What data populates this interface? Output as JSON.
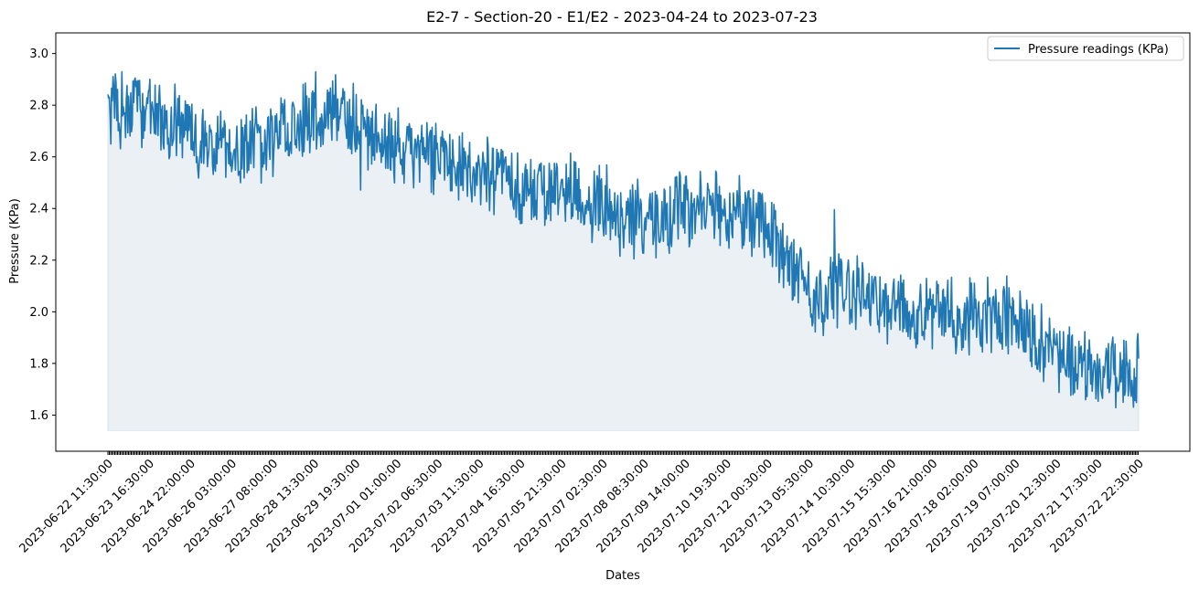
{
  "chart_data": {
    "type": "line",
    "title": "E2-7 - Section-20 - E1/E2 - 2023-04-24 to 2023-07-23",
    "xlabel": "Dates",
    "ylabel": "Pressure (KPa)",
    "x_tick_labels": [
      "2023-06-22 11:30:00",
      "2023-06-23 16:30:00",
      "2023-06-24 22:00:00",
      "2023-06-26 03:00:00",
      "2023-06-27 08:00:00",
      "2023-06-28 13:30:00",
      "2023-06-29 19:30:00",
      "2023-07-01 01:00:00",
      "2023-07-02 06:30:00",
      "2023-07-03 11:30:00",
      "2023-07-04 16:30:00",
      "2023-07-05 21:30:00",
      "2023-07-07 02:30:00",
      "2023-07-08 08:30:00",
      "2023-07-09 14:00:00",
      "2023-07-10 19:30:00",
      "2023-07-12 00:30:00",
      "2023-07-13 05:30:00",
      "2023-07-14 10:30:00",
      "2023-07-15 15:30:00",
      "2023-07-16 21:00:00",
      "2023-07-18 02:00:00",
      "2023-07-19 07:00:00",
      "2023-07-20 12:30:00",
      "2023-07-21 17:30:00",
      "2023-07-22 22:30:00"
    ],
    "y_ticks": [
      1.6,
      1.8,
      2.0,
      2.2,
      2.4,
      2.6,
      2.8,
      3.0
    ],
    "ylim": [
      1.46,
      3.08
    ],
    "fill_baseline": 1.54,
    "legend_position": "top-right",
    "series": [
      {
        "name": "Pressure readings (KPa)",
        "color": "#1f77b4",
        "fill_color": "#dde6ec",
        "x": [
          "2023-06-22 11:30:00",
          "2023-06-23 16:30:00",
          "2023-06-24 22:00:00",
          "2023-06-26 03:00:00",
          "2023-06-27 08:00:00",
          "2023-06-28 13:30:00",
          "2023-06-29 19:30:00",
          "2023-07-01 01:00:00",
          "2023-07-02 06:30:00",
          "2023-07-03 11:30:00",
          "2023-07-04 16:30:00",
          "2023-07-05 21:30:00",
          "2023-07-07 02:30:00",
          "2023-07-08 08:30:00",
          "2023-07-09 14:00:00",
          "2023-07-10 19:30:00",
          "2023-07-12 00:30:00",
          "2023-07-13 05:30:00",
          "2023-07-14 10:30:00",
          "2023-07-15 15:30:00",
          "2023-07-16 21:00:00",
          "2023-07-18 02:00:00",
          "2023-07-19 07:00:00",
          "2023-07-20 12:30:00",
          "2023-07-21 17:30:00",
          "2023-07-22 22:30:00"
        ],
        "values": [
          2.77,
          2.77,
          2.66,
          2.63,
          2.67,
          2.77,
          2.72,
          2.63,
          2.6,
          2.56,
          2.49,
          2.46,
          2.4,
          2.34,
          2.4,
          2.39,
          2.33,
          2.05,
          2.1,
          2.02,
          2.0,
          1.99,
          1.97,
          1.81,
          1.76,
          1.77
        ],
        "min": 1.54,
        "max": 3.0
      }
    ]
  }
}
